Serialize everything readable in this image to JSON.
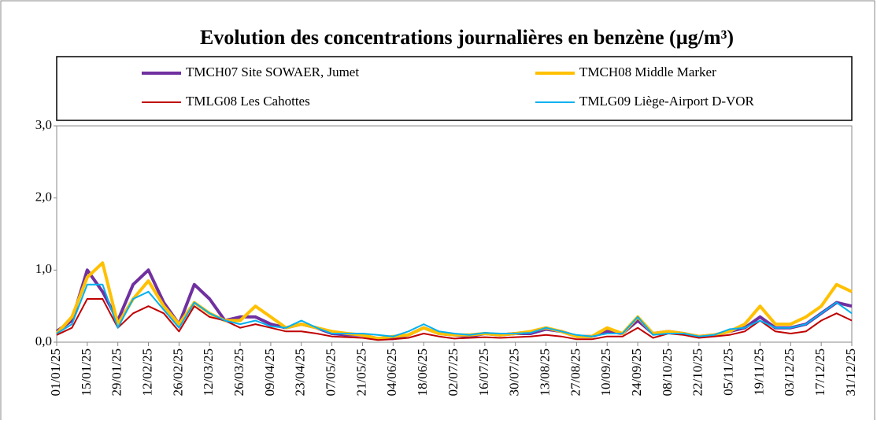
{
  "chart_data": {
    "type": "line",
    "title": "Evolution des concentrations journalières en benzène (µg/m³)",
    "x": [
      "01/01/25",
      "08/01/25",
      "15/01/25",
      "22/01/25",
      "29/01/25",
      "05/02/25",
      "12/02/25",
      "19/02/25",
      "26/02/25",
      "05/03/25",
      "12/03/25",
      "19/03/25",
      "26/03/25",
      "02/04/25",
      "09/04/25",
      "16/04/25",
      "23/04/25",
      "30/04/25",
      "07/05/25",
      "14/05/25",
      "21/05/25",
      "28/05/25",
      "04/06/25",
      "11/06/25",
      "18/06/25",
      "25/06/25",
      "02/07/25",
      "09/07/25",
      "16/07/25",
      "23/07/25",
      "30/07/25",
      "06/08/25",
      "13/08/25",
      "20/08/25",
      "27/08/25",
      "03/09/25",
      "10/09/25",
      "17/09/25",
      "24/09/25",
      "01/10/25",
      "08/10/25",
      "15/10/25",
      "22/10/25",
      "29/10/25",
      "05/11/25",
      "12/11/25",
      "19/11/25",
      "26/11/25",
      "03/12/25",
      "10/12/25",
      "17/12/25",
      "24/12/25",
      "31/12/25"
    ],
    "series": [
      {
        "name": "TMCH07 Site SOWAER, Jumet",
        "color": "#7030a0",
        "values": [
          0.15,
          0.3,
          1.0,
          0.7,
          0.3,
          0.8,
          1.0,
          0.55,
          0.25,
          0.8,
          0.6,
          0.3,
          0.35,
          0.35,
          0.25,
          0.2,
          0.25,
          0.2,
          0.12,
          0.1,
          0.1,
          0.05,
          0.05,
          0.1,
          0.2,
          0.12,
          0.1,
          0.08,
          0.12,
          0.1,
          0.12,
          0.12,
          0.18,
          0.15,
          0.08,
          0.08,
          0.15,
          0.12,
          0.3,
          0.12,
          0.15,
          0.12,
          0.08,
          0.1,
          0.15,
          0.2,
          0.35,
          0.2,
          0.2,
          0.25,
          0.4,
          0.55,
          0.5
        ]
      },
      {
        "name": "TMCH08 Middle Marker",
        "color": "#ffc000",
        "values": [
          0.12,
          0.35,
          0.9,
          1.1,
          0.25,
          0.6,
          0.85,
          0.5,
          0.25,
          0.55,
          0.4,
          0.3,
          0.3,
          0.5,
          0.35,
          0.2,
          0.25,
          0.2,
          0.15,
          0.12,
          0.1,
          0.05,
          0.08,
          0.1,
          0.2,
          0.12,
          0.1,
          0.1,
          0.12,
          0.1,
          0.12,
          0.15,
          0.2,
          0.15,
          0.08,
          0.08,
          0.2,
          0.12,
          0.35,
          0.12,
          0.15,
          0.12,
          0.08,
          0.1,
          0.15,
          0.25,
          0.5,
          0.25,
          0.25,
          0.35,
          0.5,
          0.8,
          0.7
        ]
      },
      {
        "name": "TMLG08 Les Cahottes",
        "color": "#c00000",
        "values": [
          0.1,
          0.2,
          0.6,
          0.6,
          0.2,
          0.4,
          0.5,
          0.4,
          0.15,
          0.5,
          0.35,
          0.3,
          0.2,
          0.25,
          0.2,
          0.15,
          0.15,
          0.12,
          0.08,
          0.07,
          0.06,
          0.03,
          0.04,
          0.06,
          0.12,
          0.08,
          0.05,
          0.06,
          0.07,
          0.06,
          0.07,
          0.08,
          0.1,
          0.08,
          0.04,
          0.04,
          0.08,
          0.08,
          0.2,
          0.06,
          0.12,
          0.1,
          0.06,
          0.08,
          0.1,
          0.15,
          0.3,
          0.15,
          0.12,
          0.15,
          0.3,
          0.4,
          0.3
        ]
      },
      {
        "name": "TMLG09 Liège-Airport D-VOR",
        "color": "#00b0f0",
        "values": [
          0.12,
          0.25,
          0.8,
          0.8,
          0.2,
          0.6,
          0.7,
          0.45,
          0.2,
          0.55,
          0.4,
          0.3,
          0.25,
          0.3,
          0.22,
          0.2,
          0.3,
          0.2,
          0.12,
          0.12,
          0.12,
          0.1,
          0.08,
          0.15,
          0.25,
          0.15,
          0.12,
          0.1,
          0.13,
          0.12,
          0.12,
          0.13,
          0.2,
          0.15,
          0.1,
          0.08,
          0.12,
          0.12,
          0.35,
          0.1,
          0.12,
          0.12,
          0.08,
          0.1,
          0.18,
          0.2,
          0.3,
          0.2,
          0.2,
          0.25,
          0.4,
          0.55,
          0.4
        ]
      }
    ],
    "xlim": [
      "01/01/25",
      "31/12/25"
    ],
    "xticks": [
      "01/01/25",
      "15/01/25",
      "29/01/25",
      "12/02/25",
      "26/02/25",
      "12/03/25",
      "26/03/25",
      "09/04/25",
      "23/04/25",
      "07/05/25",
      "21/05/25",
      "04/06/25",
      "18/06/25",
      "02/07/25",
      "16/07/25",
      "30/07/25",
      "13/08/25",
      "27/08/25",
      "10/09/25",
      "24/09/25",
      "08/10/25",
      "22/10/25",
      "05/11/25",
      "19/11/25",
      "03/12/25",
      "17/12/25",
      "31/12/25"
    ],
    "ylim": [
      0,
      3
    ],
    "yticks": [
      {
        "value": 0,
        "label": "0,0"
      },
      {
        "value": 1,
        "label": "1,0"
      },
      {
        "value": 2,
        "label": "2,0"
      },
      {
        "value": 3,
        "label": "3,0"
      }
    ]
  }
}
